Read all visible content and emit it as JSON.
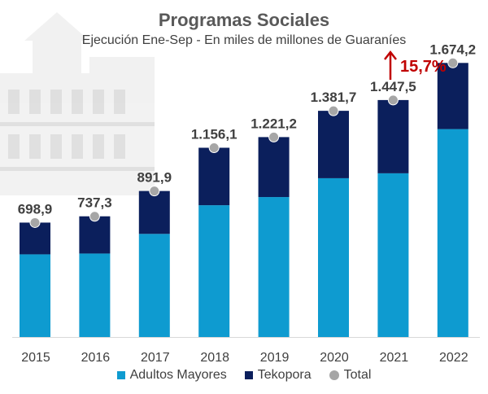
{
  "chart_data": {
    "type": "bar",
    "stacked": true,
    "title": "Programas Sociales",
    "subtitle": "Ejecución Ene-Sep - En miles de millones de Guaraníes",
    "categories": [
      "2015",
      "2016",
      "2017",
      "2018",
      "2019",
      "2020",
      "2021",
      "2022"
    ],
    "series": [
      {
        "name": "Adultos Mayores",
        "color": "#0e9bd0",
        "values": [
          505,
          510,
          630,
          805,
          855,
          970,
          1000,
          1270
        ]
      },
      {
        "name": "Tekopora",
        "color": "#0b1f5c",
        "values": [
          193.9,
          227.3,
          261.9,
          351.1,
          366.2,
          411.7,
          447.5,
          404.2
        ]
      }
    ],
    "total": {
      "name": "Total",
      "color": "#a6a6a6",
      "values": [
        698.9,
        737.3,
        891.9,
        1156.1,
        1221.2,
        1381.7,
        1447.5,
        1674.2
      ],
      "labels": [
        "698,9",
        "737,3",
        "891,9",
        "1.156,1",
        "1.221,2",
        "1.381,7",
        "1.447,5",
        "1.674,2"
      ]
    },
    "annotation": {
      "text": "15,7%",
      "color": "#c00000",
      "icon": "up-arrow-icon"
    },
    "legend": [
      "Adultos Mayores",
      "Tekopora",
      "Total"
    ],
    "ylim": [
      0,
      1800
    ],
    "xlabel": "",
    "ylabel": ""
  }
}
